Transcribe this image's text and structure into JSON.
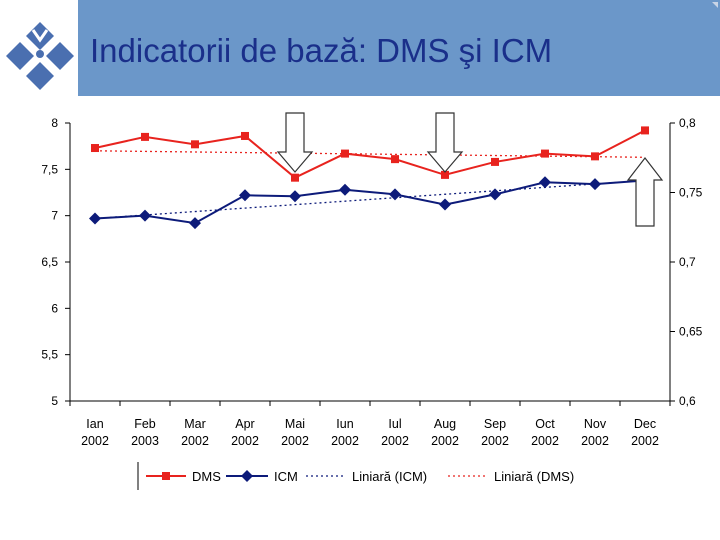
{
  "title": "Indicatorii de bază: DMS şi ICM",
  "colors": {
    "header": "#6b97c9",
    "title": "#1a2f8a",
    "dms": "#e8231e",
    "icm": "#0d1b7a",
    "logo": "#4a6fb0"
  },
  "chart_data": {
    "type": "line",
    "categories": [
      "Ian\n2002",
      "Feb\n2003",
      "Mar\n2002",
      "Apr\n2002",
      "Mai\n2002",
      "Iun\n2002",
      "Iul\n2002",
      "Aug\n2002",
      "Sep\n2002",
      "Oct\n2002",
      "Nov\n2002",
      "Dec\n2002"
    ],
    "y_left": {
      "min": 5,
      "max": 8,
      "ticks": [
        "5",
        "5,5",
        "6",
        "6,5",
        "7",
        "7,5",
        "8"
      ],
      "tick_values": [
        5,
        5.5,
        6,
        6.5,
        7,
        7.5,
        8
      ]
    },
    "y_right": {
      "min": 0.6,
      "max": 0.8,
      "ticks": [
        "0,6",
        "0,65",
        "0,7",
        "0,75",
        "0,8"
      ],
      "tick_values": [
        0.6,
        0.65,
        0.7,
        0.75,
        0.8
      ]
    },
    "series": [
      {
        "name": "DMS",
        "axis": "left",
        "color": "#e8231e",
        "marker": "square",
        "values": [
          7.73,
          7.85,
          7.77,
          7.86,
          7.41,
          7.67,
          7.61,
          7.44,
          7.58,
          7.67,
          7.64,
          7.92
        ]
      },
      {
        "name": "ICM",
        "axis": "left",
        "color": "#0d1b7a",
        "marker": "diamond",
        "values": [
          6.97,
          7.0,
          6.92,
          7.22,
          7.21,
          7.28,
          7.23,
          7.12,
          7.23,
          7.36,
          7.34,
          7.38
        ]
      }
    ],
    "trendlines": [
      {
        "name": "Liniară (ICM)",
        "color": "#0d1b7a",
        "start": 6.97,
        "end": 7.38
      },
      {
        "name": "Liniară (DMS)",
        "color": "#e8231e",
        "start": 7.7,
        "end": 7.63
      }
    ],
    "annotations": [
      {
        "type": "arrow-down",
        "category_index": 4
      },
      {
        "type": "arrow-down",
        "category_index": 7
      },
      {
        "type": "arrow-up",
        "category_index": 11
      }
    ],
    "legend": [
      "DMS",
      "ICM",
      "Liniară (ICM)",
      "Liniară (DMS)"
    ],
    "legend_position": "bottom",
    "grid": false
  }
}
